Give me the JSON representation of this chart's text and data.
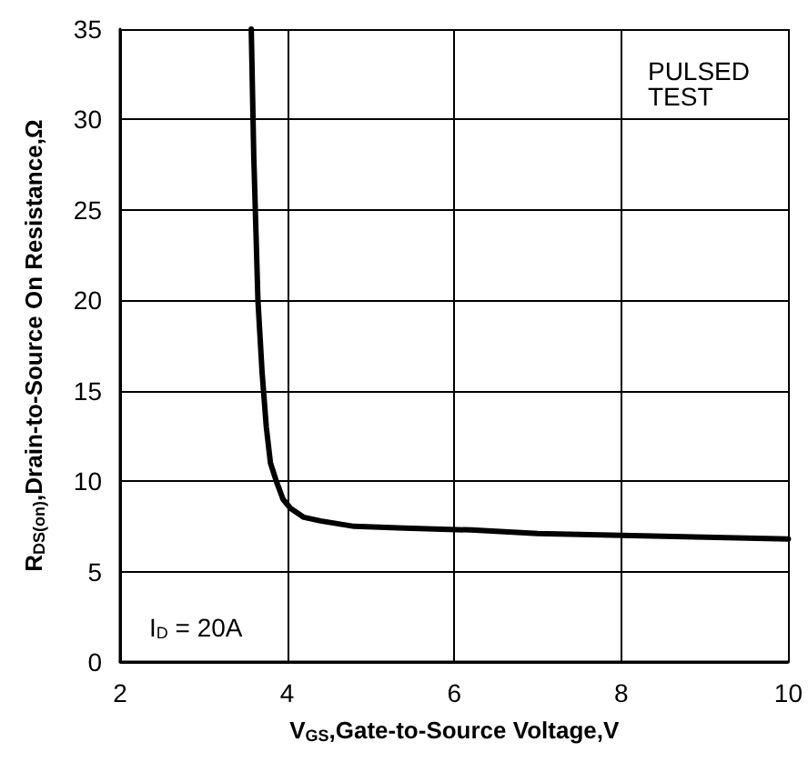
{
  "chart_data": {
    "type": "line",
    "xlabel": "V$_{GS}$,Gate-to-Source Voltage,V",
    "ylabel": "R$_{DS(on)}$,Drain-to-Source On Resistance,Ω",
    "annotations": [
      "PULSED TEST",
      "I$_{D}$ = 20A"
    ],
    "series": [
      {
        "color": "#000000",
        "x": [
          3.57,
          3.6,
          3.65,
          3.7,
          3.75,
          3.8,
          3.87,
          3.95,
          4.04,
          4.2,
          4.4,
          4.8,
          5.4,
          6.2,
          7,
          8,
          9,
          10
        ],
        "values": [
          35,
          28,
          20,
          16,
          13,
          11,
          10,
          9,
          8.5,
          8,
          7.8,
          7.5,
          7.4,
          7.3,
          7.1,
          7,
          6.9,
          6.8
        ]
      }
    ],
    "xlim": [
      2,
      10
    ],
    "xticks": [
      2,
      4,
      6,
      8,
      10
    ],
    "ylim": [
      0,
      35
    ],
    "yticks": [
      0,
      5,
      10,
      15,
      20,
      25,
      30,
      35
    ],
    "grid": true,
    "marker": "none",
    "line_style": "solid"
  }
}
